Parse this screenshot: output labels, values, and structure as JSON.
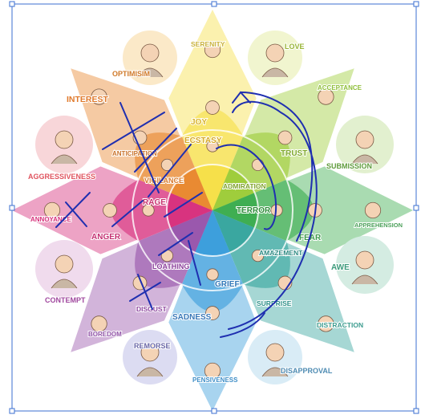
{
  "labels": {
    "serenity": "SERENITY",
    "love": "LOVE",
    "optimism": "OPTIMISIM",
    "acceptance": "ACCEPTANCE",
    "interest": "INTEREST",
    "joy": "JOY",
    "ecstasy": "ECSTASY",
    "trust": "TRUST",
    "aggressiveness": "AGGRESSIVENESS",
    "anticipation": "ANTICIPATION",
    "admiration": "ADMIRATION",
    "submission": "SUBMISSION",
    "vigilance": "VIGILANCE",
    "rage": "RAGE",
    "terror": "TERROR",
    "annoyance": "ANNOYANCE",
    "anger": "ANGER",
    "fear": "FEAR",
    "apprehension": "APPREHENSION",
    "amazement": "AMAZEMENT",
    "loathing": "LOATHING",
    "awe": "AWE",
    "contempt": "CONTEMPT",
    "grief": "GRIEF",
    "disgust": "DISGUST",
    "surprise": "SURPRISE",
    "sadness": "SADNESS",
    "distraction": "DISTRACTION",
    "boredom": "BOREDOM",
    "remorse": "REMORSE",
    "disapproval": "DISAPPROVAL",
    "pensiveness": "PENSIVENESS"
  },
  "colors": {
    "joy": "#f6e04a",
    "trust": "#9fcd3c",
    "fear": "#3fae52",
    "surprise": "#3aa7a0",
    "sadness": "#3d9fdc",
    "disgust": "#9a58ad",
    "anger": "#d8337f",
    "anticipation": "#e98a32",
    "ink": "#1f2fb0",
    "selection": "#3b6fd1"
  }
}
